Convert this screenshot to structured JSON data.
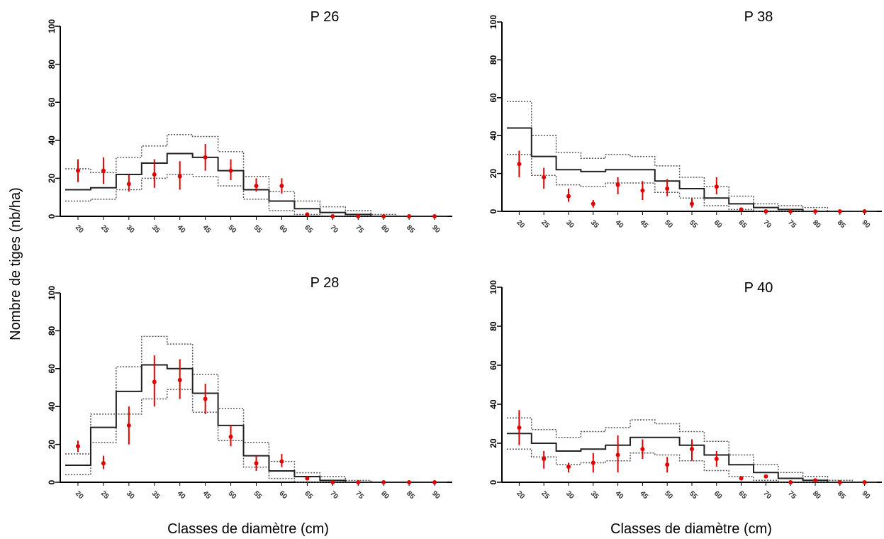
{
  "figure": {
    "ylabel": "Nombre de tiges (nb/ha)",
    "xlabel_left": "Classes de diamètre (cm)",
    "xlabel_right": "Classes de diamètre (cm)"
  },
  "chart_data": [
    {
      "type": "step_with_errorbars",
      "title": "P 26",
      "xlabel": "Classes de diamètre (cm)",
      "ylabel": "Nombre de tiges (nb/ha)",
      "ylim": [
        0,
        100
      ],
      "yticks": [
        0,
        20,
        40,
        60,
        80,
        100
      ],
      "categories": [
        "20",
        "25",
        "30",
        "35",
        "40",
        "45",
        "50",
        "55",
        "60",
        "65",
        "70",
        "75",
        "80",
        "85",
        "90"
      ],
      "step": [
        14,
        15,
        22,
        28,
        33,
        31,
        24,
        14,
        8,
        4,
        2,
        1,
        0,
        0,
        0
      ],
      "step_lower": [
        8,
        9,
        14,
        20,
        22,
        21,
        16,
        9,
        3,
        1,
        0,
        0,
        0,
        0,
        0
      ],
      "step_upper": [
        25,
        23,
        31,
        37,
        43,
        42,
        34,
        21,
        13,
        8,
        5,
        3,
        1,
        0,
        0
      ],
      "points": [
        24,
        24,
        17,
        22,
        21,
        31,
        24,
        16,
        16,
        1,
        0,
        0,
        0,
        0,
        0
      ],
      "points_low": [
        18,
        17,
        13,
        15,
        14,
        24,
        19,
        13,
        12,
        0,
        0,
        0,
        0,
        0,
        0
      ],
      "points_high": [
        30,
        31,
        22,
        30,
        29,
        38,
        30,
        20,
        20,
        2,
        0,
        0,
        0,
        0,
        0
      ]
    },
    {
      "type": "step_with_errorbars",
      "title": "P 38",
      "xlabel": "Classes de diamètre (cm)",
      "ylabel": "Nombre de tiges (nb/ha)",
      "ylim": [
        0,
        100
      ],
      "yticks": [
        0,
        20,
        40,
        60,
        80,
        100
      ],
      "categories": [
        "20",
        "25",
        "30",
        "35",
        "40",
        "45",
        "50",
        "55",
        "60",
        "65",
        "70",
        "75",
        "80",
        "85",
        "90"
      ],
      "step": [
        44,
        29,
        22,
        21,
        22,
        22,
        16,
        12,
        7,
        4,
        2,
        1,
        0,
        0,
        0
      ],
      "step_lower": [
        30,
        19,
        14,
        13,
        15,
        15,
        10,
        7,
        3,
        1,
        0,
        0,
        0,
        0,
        0
      ],
      "step_upper": [
        58,
        40,
        31,
        28,
        30,
        29,
        24,
        18,
        13,
        8,
        4,
        3,
        2,
        0,
        0
      ],
      "points": [
        25,
        18,
        8,
        4,
        14,
        11,
        12,
        4,
        13,
        1,
        0,
        0,
        0,
        0,
        0
      ],
      "points_low": [
        18,
        12,
        5,
        2,
        9,
        6,
        8,
        2,
        9,
        0,
        0,
        0,
        0,
        0,
        0
      ],
      "points_high": [
        32,
        23,
        12,
        6,
        18,
        16,
        17,
        7,
        18,
        2,
        0,
        0,
        0,
        0,
        0
      ]
    },
    {
      "type": "step_with_errorbars",
      "title": "P 28",
      "xlabel": "Classes de diamètre (cm)",
      "ylabel": "Nombre de tiges (nb/ha)",
      "ylim": [
        0,
        100
      ],
      "yticks": [
        0,
        20,
        40,
        60,
        80,
        100
      ],
      "categories": [
        "20",
        "25",
        "30",
        "35",
        "40",
        "45",
        "50",
        "55",
        "60",
        "65",
        "70",
        "75",
        "80",
        "85",
        "90"
      ],
      "step": [
        9,
        29,
        48,
        62,
        60,
        47,
        30,
        14,
        6,
        3,
        1,
        0,
        0,
        0,
        0
      ],
      "step_lower": [
        4,
        21,
        36,
        44,
        49,
        37,
        22,
        8,
        2,
        0,
        0,
        0,
        0,
        0,
        0
      ],
      "step_upper": [
        15,
        36,
        61,
        77,
        73,
        57,
        39,
        21,
        11,
        5,
        3,
        1,
        0,
        0,
        0
      ],
      "points": [
        19,
        10,
        30,
        53,
        54,
        44,
        24,
        10,
        11,
        2,
        0,
        0,
        0,
        0,
        0
      ],
      "points_low": [
        16,
        7,
        20,
        40,
        44,
        36,
        19,
        6,
        8,
        1,
        0,
        0,
        0,
        0,
        0
      ],
      "points_high": [
        22,
        14,
        40,
        67,
        65,
        52,
        30,
        14,
        15,
        3,
        0,
        0,
        0,
        0,
        0
      ]
    },
    {
      "type": "step_with_errorbars",
      "title": "P 40",
      "xlabel": "Classes de diamètre (cm)",
      "ylabel": "Nombre de tiges (nb/ha)",
      "ylim": [
        0,
        100
      ],
      "yticks": [
        0,
        20,
        40,
        60,
        80,
        100
      ],
      "categories": [
        "20",
        "25",
        "30",
        "35",
        "40",
        "45",
        "50",
        "55",
        "60",
        "65",
        "70",
        "75",
        "80",
        "85",
        "90"
      ],
      "step": [
        25,
        20,
        16,
        17,
        19,
        23,
        23,
        19,
        14,
        9,
        5,
        2,
        1,
        0,
        0
      ],
      "step_lower": [
        17,
        13,
        9,
        10,
        11,
        15,
        14,
        11,
        6,
        3,
        1,
        0,
        0,
        0,
        0
      ],
      "step_upper": [
        33,
        27,
        23,
        26,
        28,
        32,
        30,
        26,
        21,
        14,
        9,
        5,
        3,
        1,
        0
      ],
      "points": [
        28,
        12,
        8,
        10,
        14,
        17,
        9,
        17,
        12,
        2,
        3,
        0,
        1,
        0,
        0
      ],
      "points_low": [
        19,
        7,
        5,
        5,
        5,
        12,
        5,
        11,
        8,
        1,
        2,
        0,
        0,
        0,
        0
      ],
      "points_high": [
        37,
        16,
        10,
        15,
        24,
        22,
        13,
        22,
        16,
        3,
        4,
        0,
        1,
        0,
        0
      ]
    }
  ]
}
